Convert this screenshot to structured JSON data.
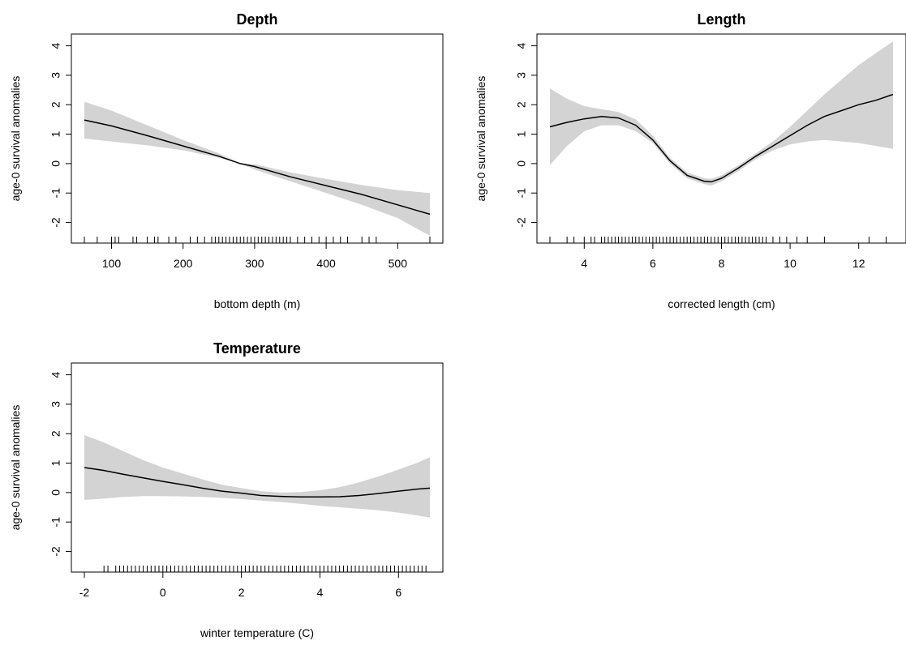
{
  "chart_data": [
    {
      "type": "line",
      "title": "Depth",
      "xlabel": "bottom depth (m)",
      "ylabel": "age-0 survival anomalies",
      "xlim": [
        62,
        545
      ],
      "ylim": [
        -2.7,
        4.4
      ],
      "xticks": [
        100,
        200,
        300,
        400,
        500
      ],
      "xtick_labels": [
        "100",
        "200",
        "300",
        "400",
        "500"
      ],
      "yticks": [
        -2,
        -1,
        0,
        1,
        2,
        3,
        4
      ],
      "ytick_labels": [
        "-2",
        "-1",
        "0",
        "1",
        "2",
        "3",
        "4"
      ],
      "grid": false,
      "series": [
        {
          "x": [
            62,
            100,
            150,
            200,
            250,
            280,
            300,
            350,
            400,
            450,
            500,
            545
          ],
          "y": [
            1.48,
            1.28,
            0.95,
            0.6,
            0.25,
            0.0,
            -0.1,
            -0.45,
            -0.75,
            -1.05,
            -1.4,
            -1.72
          ]
        }
      ],
      "ci_lower": [
        0.85,
        0.75,
        0.62,
        0.45,
        0.2,
        0.0,
        -0.2,
        -0.6,
        -1.0,
        -1.4,
        -1.85,
        -2.45
      ],
      "ci_upper": [
        2.1,
        1.8,
        1.3,
        0.8,
        0.35,
        0.0,
        -0.02,
        -0.3,
        -0.52,
        -0.73,
        -0.9,
        -1.0
      ],
      "rug": [
        62,
        80,
        100,
        105,
        110,
        130,
        135,
        150,
        160,
        165,
        180,
        190,
        210,
        220,
        230,
        240,
        245,
        250,
        255,
        260,
        265,
        270,
        275,
        280,
        285,
        290,
        295,
        300,
        305,
        310,
        315,
        320,
        325,
        330,
        335,
        340,
        345,
        350,
        360,
        370,
        380,
        390,
        400,
        410,
        420,
        430,
        450,
        460,
        470,
        545
      ]
    },
    {
      "type": "line",
      "title": "Length",
      "xlabel": "corrected length (cm)",
      "ylabel": "age-0 survival anomalies",
      "xlim": [
        3.0,
        13.0
      ],
      "ylim": [
        -2.7,
        4.4
      ],
      "xticks": [
        4,
        6,
        8,
        10,
        12
      ],
      "xtick_labels": [
        "4",
        "6",
        "8",
        "10",
        "12"
      ],
      "yticks": [
        -2,
        -1,
        0,
        1,
        2,
        3,
        4
      ],
      "ytick_labels": [
        "-2",
        "-1",
        "0",
        "1",
        "2",
        "3",
        "4"
      ],
      "grid": false,
      "series": [
        {
          "x": [
            3.0,
            3.5,
            4.0,
            4.5,
            5.0,
            5.5,
            6.0,
            6.5,
            7.0,
            7.5,
            7.7,
            8.0,
            8.5,
            9.0,
            9.5,
            10.0,
            10.5,
            11.0,
            11.5,
            12.0,
            12.5,
            13.0
          ],
          "y": [
            1.25,
            1.4,
            1.52,
            1.6,
            1.55,
            1.3,
            0.8,
            0.1,
            -0.4,
            -0.6,
            -0.62,
            -0.5,
            -0.15,
            0.25,
            0.6,
            0.95,
            1.3,
            1.6,
            1.8,
            2.0,
            2.15,
            2.35
          ]
        }
      ],
      "ci_lower": [
        -0.05,
        0.6,
        1.1,
        1.3,
        1.3,
        1.1,
        0.7,
        0.0,
        -0.5,
        -0.7,
        -0.75,
        -0.6,
        -0.25,
        0.15,
        0.45,
        0.65,
        0.75,
        0.8,
        0.75,
        0.7,
        0.6,
        0.5
      ],
      "ci_upper": [
        2.55,
        2.2,
        1.95,
        1.85,
        1.75,
        1.5,
        0.95,
        0.2,
        -0.3,
        -0.5,
        -0.52,
        -0.4,
        -0.05,
        0.35,
        0.75,
        1.25,
        1.8,
        2.35,
        2.85,
        3.35,
        3.75,
        4.15
      ],
      "rug": [
        3.0,
        3.5,
        3.7,
        4.0,
        4.2,
        4.3,
        4.5,
        4.6,
        4.7,
        4.8,
        4.9,
        5.0,
        5.1,
        5.2,
        5.3,
        5.4,
        5.5,
        5.6,
        5.7,
        5.8,
        5.9,
        6.0,
        6.1,
        6.2,
        6.3,
        6.4,
        6.5,
        6.6,
        6.7,
        6.8,
        6.9,
        7.0,
        7.1,
        7.2,
        7.3,
        7.4,
        7.5,
        7.6,
        7.7,
        7.8,
        7.9,
        8.0,
        8.1,
        8.2,
        8.3,
        8.4,
        8.5,
        8.6,
        8.7,
        8.8,
        8.9,
        9.0,
        9.1,
        9.2,
        9.3,
        9.5,
        9.7,
        9.9,
        10.2,
        10.5,
        11.0,
        12.3,
        12.8
      ]
    },
    {
      "type": "line",
      "title": "Temperature",
      "xlabel": "winter temperature (C)",
      "ylabel": "age-0 survival anomalies",
      "xlim": [
        -2.0,
        6.8
      ],
      "ylim": [
        -2.7,
        4.4
      ],
      "xticks": [
        -2,
        0,
        2,
        4,
        6
      ],
      "xtick_labels": [
        "-2",
        "0",
        "2",
        "4",
        "6"
      ],
      "yticks": [
        -2,
        -1,
        0,
        1,
        2,
        3,
        4
      ],
      "ytick_labels": [
        "-2",
        "-1",
        "0",
        "1",
        "2",
        "3",
        "4"
      ],
      "grid": false,
      "series": [
        {
          "x": [
            -2.0,
            -1.5,
            -1.0,
            -0.5,
            0.0,
            0.5,
            1.0,
            1.5,
            2.0,
            2.5,
            3.0,
            3.5,
            4.0,
            4.5,
            5.0,
            5.5,
            6.0,
            6.5,
            6.8
          ],
          "y": [
            0.85,
            0.75,
            0.62,
            0.5,
            0.38,
            0.27,
            0.15,
            0.05,
            -0.02,
            -0.1,
            -0.13,
            -0.15,
            -0.15,
            -0.14,
            -0.1,
            -0.03,
            0.05,
            0.12,
            0.15
          ]
        }
      ],
      "ci_lower": [
        -0.25,
        -0.2,
        -0.15,
        -0.12,
        -0.12,
        -0.13,
        -0.15,
        -0.18,
        -0.22,
        -0.27,
        -0.32,
        -0.38,
        -0.45,
        -0.5,
        -0.55,
        -0.6,
        -0.68,
        -0.78,
        -0.85
      ],
      "ci_upper": [
        1.95,
        1.7,
        1.4,
        1.1,
        0.85,
        0.65,
        0.45,
        0.27,
        0.15,
        0.05,
        0.0,
        0.02,
        0.08,
        0.18,
        0.35,
        0.55,
        0.78,
        1.02,
        1.2
      ],
      "rug": [
        -1.5,
        -1.4,
        -1.2,
        -1.1,
        -1.0,
        -0.9,
        -0.8,
        -0.7,
        -0.6,
        -0.5,
        -0.4,
        -0.3,
        -0.2,
        -0.1,
        0.0,
        0.1,
        0.2,
        0.3,
        0.4,
        0.5,
        0.6,
        0.7,
        0.8,
        0.9,
        1.0,
        1.1,
        1.2,
        1.3,
        1.4,
        1.5,
        1.6,
        1.7,
        1.8,
        1.9,
        2.0,
        2.1,
        2.2,
        2.3,
        2.4,
        2.5,
        2.6,
        2.7,
        2.8,
        2.9,
        3.0,
        3.1,
        3.2,
        3.3,
        3.4,
        3.5,
        3.6,
        3.7,
        3.8,
        3.9,
        4.0,
        4.1,
        4.2,
        4.3,
        4.4,
        4.5,
        4.6,
        4.7,
        4.8,
        4.9,
        5.0,
        5.1,
        5.2,
        5.3,
        5.4,
        5.5,
        5.6,
        5.7,
        5.8,
        5.9,
        6.0,
        6.1,
        6.2,
        6.3,
        6.4,
        6.5,
        6.6,
        6.7
      ]
    }
  ],
  "colors": {
    "ci_band": "#d3d3d3",
    "line": "#000000",
    "axis": "#000000"
  }
}
